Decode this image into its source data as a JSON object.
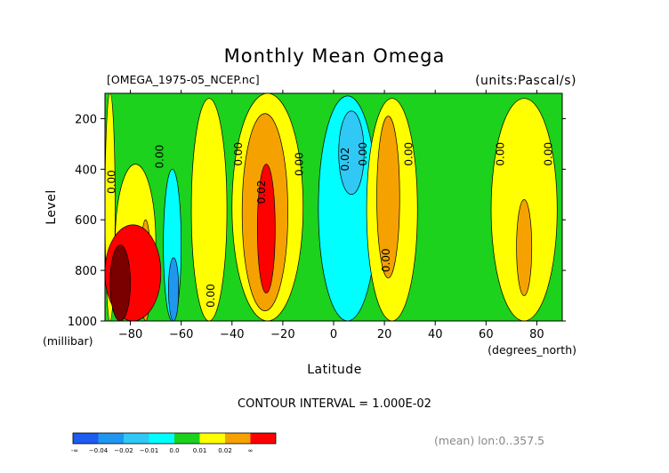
{
  "chart_data": {
    "type": "contour",
    "title": "Monthly Mean Omega",
    "file_label": "[OMEGA_1975-05_NCEP.nc]",
    "units_label": "(units:Pascal/s)",
    "xlabel": "Latitude",
    "xunit": "(degrees_north)",
    "ylabel": "Level",
    "yunit": "(millibar)",
    "xlim": [
      -90,
      90
    ],
    "ylim": [
      1000,
      100
    ],
    "x_ticks": [
      -80,
      -60,
      -40,
      -20,
      0,
      20,
      40,
      60,
      80
    ],
    "x_tick_labels": [
      "−80",
      "−60",
      "−40",
      "−20",
      "0",
      "20",
      "40",
      "60",
      "80"
    ],
    "y_ticks": [
      200,
      400,
      600,
      800,
      1000
    ],
    "y_tick_labels": [
      "200",
      "400",
      "600",
      "800",
      "1000"
    ],
    "contour_interval_text": "CONTOUR INTERVAL = 1.000E-02",
    "mean_text": "(mean) lon:0..357.5",
    "colorbar": {
      "colors": [
        "#1c5cf0",
        "#1f96f0",
        "#30c8f5",
        "#00ffff",
        "#1cd21c",
        "#ffff00",
        "#f5a200",
        "#ff0000"
      ],
      "labels": [
        "-∞",
        "−0.04",
        "−0.02",
        "−0.01",
        "0.0",
        "0.01",
        "0.02",
        "∞"
      ]
    },
    "colors": {
      "green": "#1cd21c",
      "yellow": "#ffff00",
      "orange": "#f5a200",
      "red": "#ff0000",
      "cyan": "#00ffff",
      "lightblue": "#30c8f5",
      "blue": "#1f96f0",
      "darkred": "#7a0000"
    },
    "regions": [
      {
        "color": "yellow",
        "x": [
          -90,
          -86
        ],
        "y": [
          100,
          1000
        ]
      },
      {
        "color": "yellow",
        "x": [
          -86,
          -70
        ],
        "y": [
          380,
          1000
        ]
      },
      {
        "color": "orange",
        "x": [
          -76,
          -72
        ],
        "y": [
          600,
          1000
        ]
      },
      {
        "color": "red",
        "x": [
          -90,
          -68
        ],
        "y": [
          620,
          1000
        ]
      },
      {
        "color": "darkred",
        "x": [
          -88,
          -80
        ],
        "y": [
          700,
          1000
        ]
      },
      {
        "color": "cyan",
        "x": [
          -67,
          -60
        ],
        "y": [
          400,
          1000
        ]
      },
      {
        "color": "blue",
        "x": [
          -65,
          -61
        ],
        "y": [
          750,
          1000
        ]
      },
      {
        "color": "yellow",
        "x": [
          -56,
          -42
        ],
        "y": [
          120,
          1000
        ]
      },
      {
        "color": "yellow",
        "x": [
          -40,
          -12
        ],
        "y": [
          100,
          1000
        ]
      },
      {
        "color": "orange",
        "x": [
          -36,
          -18
        ],
        "y": [
          180,
          960
        ]
      },
      {
        "color": "red",
        "x": [
          -30,
          -23
        ],
        "y": [
          380,
          890
        ]
      },
      {
        "color": "cyan",
        "x": [
          -6,
          17
        ],
        "y": [
          110,
          1000
        ]
      },
      {
        "color": "lightblue",
        "x": [
          2,
          12
        ],
        "y": [
          170,
          500
        ]
      },
      {
        "color": "yellow",
        "x": [
          13,
          33
        ],
        "y": [
          120,
          1000
        ]
      },
      {
        "color": "orange",
        "x": [
          17,
          26
        ],
        "y": [
          190,
          830
        ]
      },
      {
        "color": "yellow",
        "x": [
          62,
          88
        ],
        "y": [
          120,
          1000
        ]
      },
      {
        "color": "orange",
        "x": [
          72,
          78
        ],
        "y": [
          520,
          900
        ]
      }
    ],
    "contour_labels": [
      {
        "text": "0.00",
        "lat": -86,
        "p": 450
      },
      {
        "text": "0.00",
        "lat": -67,
        "p": 350
      },
      {
        "text": "0.00",
        "lat": -47,
        "p": 900
      },
      {
        "text": "0.00",
        "lat": -36,
        "p": 340
      },
      {
        "text": "0.02",
        "lat": -27,
        "p": 490
      },
      {
        "text": "0.00",
        "lat": -12,
        "p": 380
      },
      {
        "text": "0.02",
        "lat": 6,
        "p": 360
      },
      {
        "text": "0.00",
        "lat": 13,
        "p": 340
      },
      {
        "text": "0.00",
        "lat": 22,
        "p": 760
      },
      {
        "text": "0.00",
        "lat": 31,
        "p": 340
      },
      {
        "text": "0.00",
        "lat": 67,
        "p": 340
      },
      {
        "text": "0.00",
        "lat": 86,
        "p": 340
      }
    ]
  }
}
